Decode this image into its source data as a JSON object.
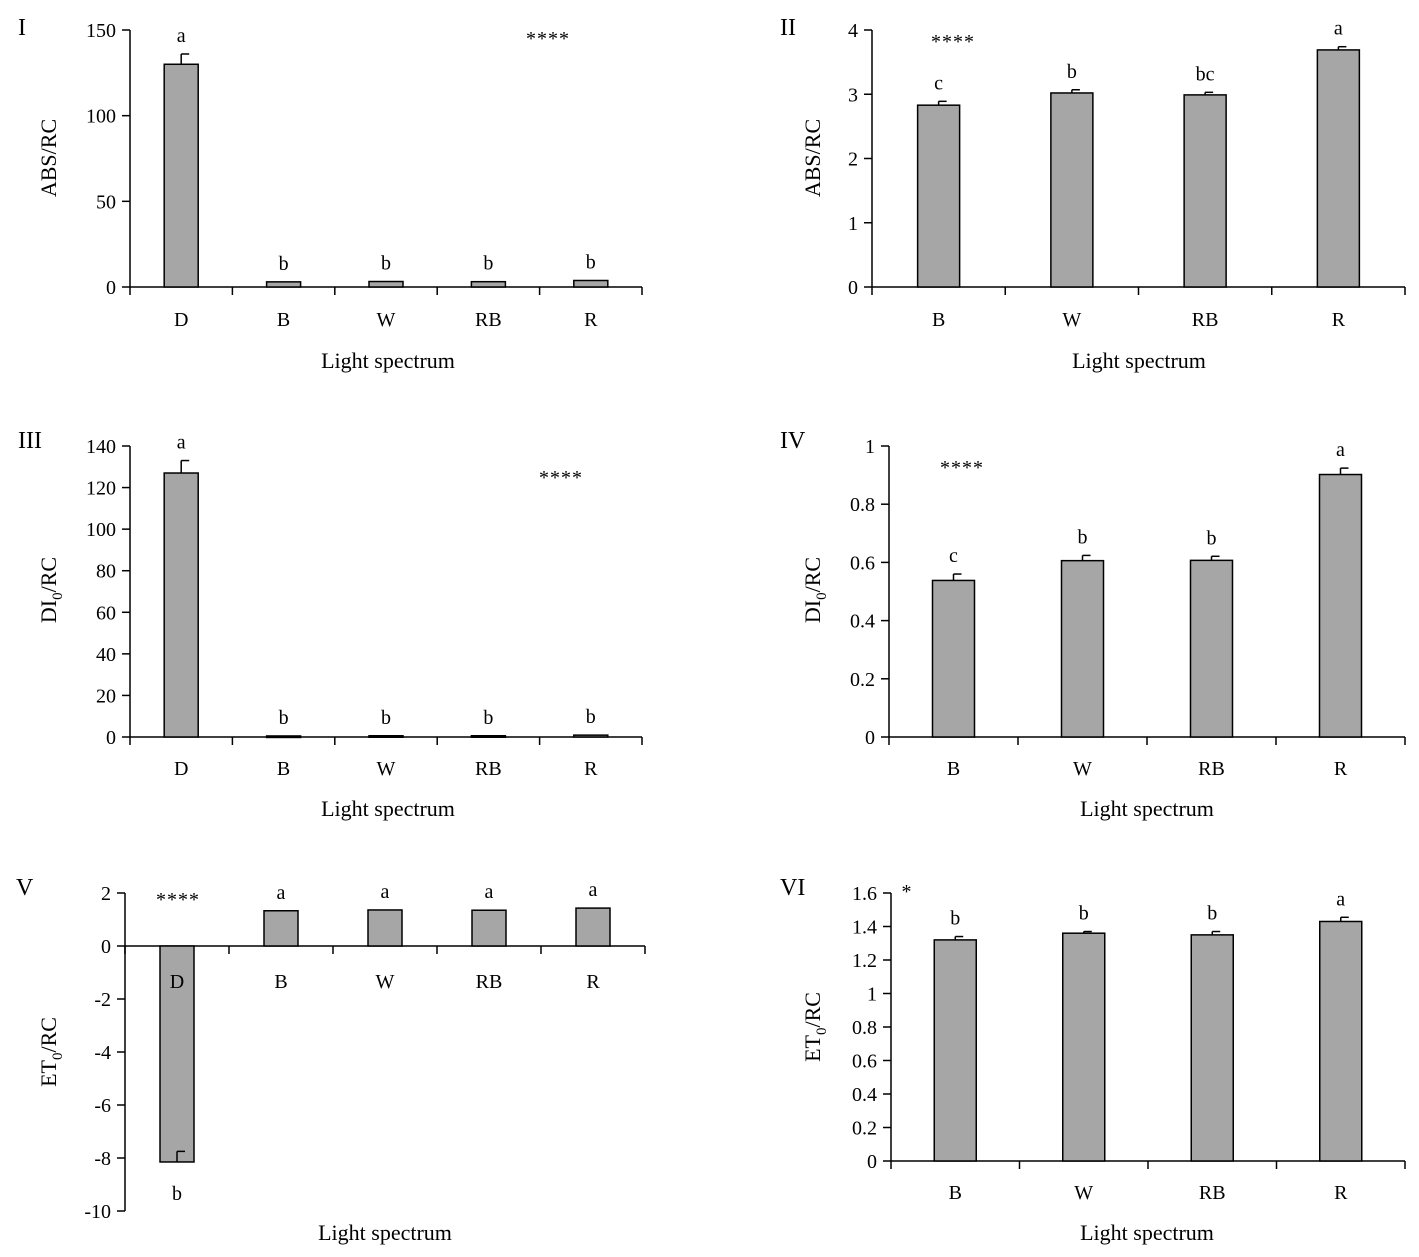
{
  "figure": {
    "bar_color": "#A6A6A6",
    "axis_color": "#000000"
  },
  "chart_data": [
    {
      "id": "I",
      "panel_label": "I",
      "type": "bar",
      "categories": [
        "D",
        "B",
        "W",
        "RB",
        "R"
      ],
      "values": [
        130,
        3,
        3.2,
        3.1,
        3.8
      ],
      "errors": [
        6,
        0,
        0,
        0,
        0
      ],
      "letters": [
        "a",
        "b",
        "b",
        "b",
        "b"
      ],
      "ylim": [
        0,
        150
      ],
      "yticks": [
        0,
        50,
        100,
        150
      ],
      "ytick_labels": [
        "0",
        "50",
        "100",
        "150"
      ],
      "ylabel": "ABS/RC",
      "ylabel_sub": "",
      "ylabel_after": "",
      "xlabel": "Light spectrum",
      "significance": "****"
    },
    {
      "id": "II",
      "panel_label": "II",
      "type": "bar",
      "categories": [
        "B",
        "W",
        "RB",
        "R"
      ],
      "values": [
        2.83,
        3.02,
        2.99,
        3.69
      ],
      "errors": [
        0.06,
        0.05,
        0.04,
        0.05
      ],
      "letters": [
        "c",
        "b",
        "bc",
        "a"
      ],
      "ylim": [
        0,
        4
      ],
      "yticks": [
        0,
        1,
        2,
        3,
        4
      ],
      "ytick_labels": [
        "0",
        "1",
        "2",
        "3",
        "4"
      ],
      "ylabel": "ABS/RC",
      "ylabel_sub": "",
      "ylabel_after": "",
      "xlabel": "Light spectrum",
      "significance": "****"
    },
    {
      "id": "III",
      "panel_label": "III",
      "type": "bar",
      "categories": [
        "D",
        "B",
        "W",
        "RB",
        "R"
      ],
      "values": [
        127,
        0.5,
        0.6,
        0.6,
        0.9
      ],
      "errors": [
        6,
        0,
        0,
        0,
        0
      ],
      "letters": [
        "a",
        "b",
        "b",
        "b",
        "b"
      ],
      "ylim": [
        0,
        140
      ],
      "yticks": [
        0,
        20,
        40,
        60,
        80,
        100,
        120,
        140
      ],
      "ytick_labels": [
        "0",
        "20",
        "40",
        "60",
        "80",
        "100",
        "120",
        "140"
      ],
      "ylabel": "DI",
      "ylabel_sub": "0",
      "ylabel_after": "/RC",
      "xlabel": "Light spectrum",
      "significance": "****"
    },
    {
      "id": "IV",
      "panel_label": "IV",
      "type": "bar",
      "categories": [
        "B",
        "W",
        "RB",
        "R"
      ],
      "values": [
        0.538,
        0.606,
        0.607,
        0.902
      ],
      "errors": [
        0.022,
        0.018,
        0.014,
        0.022
      ],
      "letters": [
        "c",
        "b",
        "b",
        "a"
      ],
      "ylim": [
        0,
        1
      ],
      "yticks": [
        0,
        0.2,
        0.4,
        0.6,
        0.8,
        1
      ],
      "ytick_labels": [
        "0",
        "0.2",
        "0.4",
        "0.6",
        "0.8",
        "1"
      ],
      "ylabel": "DI",
      "ylabel_sub": "0",
      "ylabel_after": "/RC",
      "xlabel": "Light spectrum",
      "significance": "****"
    },
    {
      "id": "V",
      "panel_label": "V",
      "type": "bar",
      "categories": [
        "D",
        "B",
        "W",
        "RB",
        "R"
      ],
      "values": [
        -8.15,
        1.33,
        1.36,
        1.35,
        1.43
      ],
      "errors": [
        0.4,
        0,
        0,
        0,
        0
      ],
      "letters": [
        "b",
        "a",
        "a",
        "a",
        "a"
      ],
      "ylim": [
        -10,
        2
      ],
      "yticks": [
        -10,
        -8,
        -6,
        -4,
        -2,
        0,
        2
      ],
      "ytick_labels": [
        "-10",
        "-8",
        "-6",
        "-4",
        "-2",
        "0",
        "2"
      ],
      "ylabel": "ET",
      "ylabel_sub": "0",
      "ylabel_after": "/RC",
      "xlabel": "Light spectrum",
      "significance": "****"
    },
    {
      "id": "VI",
      "panel_label": "VI",
      "type": "bar",
      "categories": [
        "B",
        "W",
        "RB",
        "R"
      ],
      "values": [
        1.32,
        1.36,
        1.35,
        1.43
      ],
      "errors": [
        0.02,
        0.01,
        0.02,
        0.025
      ],
      "letters": [
        "b",
        "b",
        "b",
        "a"
      ],
      "ylim": [
        0,
        1.6
      ],
      "yticks": [
        0,
        0.2,
        0.4,
        0.6,
        0.8,
        1,
        1.2,
        1.4,
        1.6
      ],
      "ytick_labels": [
        "0",
        "0.2",
        "0.4",
        "0.6",
        "0.8",
        "1",
        "1.2",
        "1.4",
        "1.6"
      ],
      "ylabel": "ET",
      "ylabel_sub": "0",
      "ylabel_after": "/RC",
      "xlabel": "Light spectrum",
      "significance": "*"
    }
  ]
}
